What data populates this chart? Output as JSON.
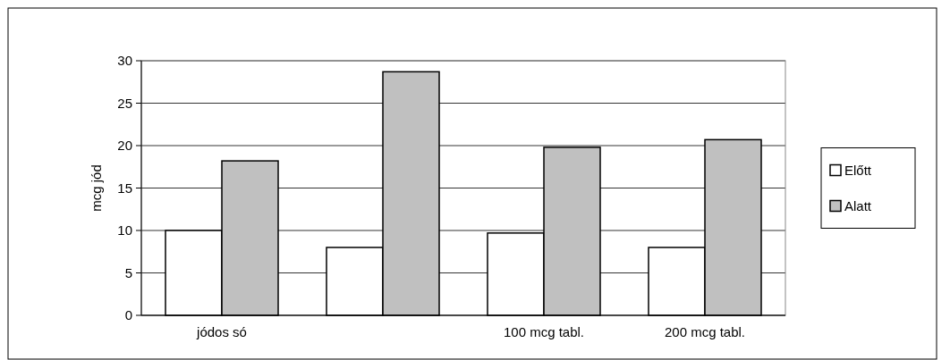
{
  "chart_data": {
    "type": "bar",
    "ylabel": "mcg jód",
    "categories": [
      "jódos só",
      null,
      "100 mcg tabl.",
      "200 mcg tabl."
    ],
    "series": [
      {
        "name": "Előtt",
        "color": "#ffffff",
        "values": [
          10,
          8,
          9.7,
          8
        ]
      },
      {
        "name": "Alatt",
        "color": "#c0c0c0",
        "values": [
          18.2,
          28.7,
          19.8,
          20.7
        ]
      }
    ],
    "ylim": [
      0,
      30
    ],
    "yticks": [
      0,
      5,
      10,
      15,
      20,
      25,
      30
    ],
    "grid": "y",
    "legend": "right"
  }
}
